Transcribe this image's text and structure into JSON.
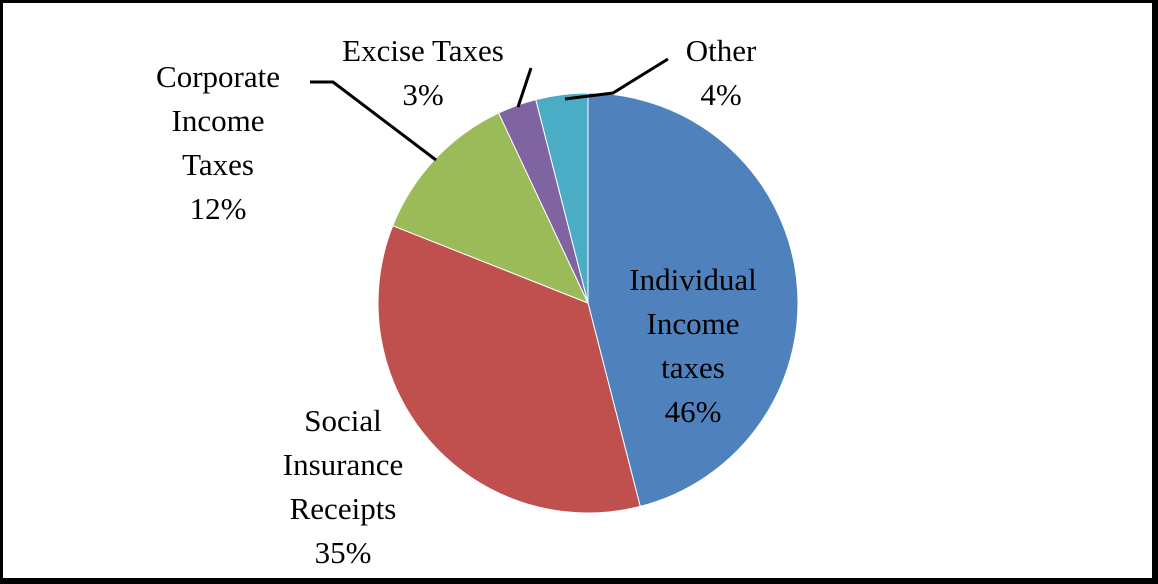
{
  "chart_data": {
    "type": "pie",
    "title": "",
    "start_angle_deg": 0,
    "direction": "clockwise",
    "slices": [
      {
        "id": "individual",
        "label_lines": [
          "Individual",
          "Income",
          "taxes"
        ],
        "value_label": "46%",
        "value": 46,
        "color": "#4F81BD"
      },
      {
        "id": "social",
        "label_lines": [
          "Social",
          "Insurance",
          "Receipts"
        ],
        "value_label": "35%",
        "value": 35,
        "color": "#C0504D"
      },
      {
        "id": "corporate",
        "label_lines": [
          "Corporate",
          "Income",
          "Taxes"
        ],
        "value_label": "12%",
        "value": 12,
        "color": "#9BBB59"
      },
      {
        "id": "excise",
        "label_lines": [
          "Excise Taxes"
        ],
        "value_label": "3%",
        "value": 3,
        "color": "#8064A2"
      },
      {
        "id": "other",
        "label_lines": [
          "Other"
        ],
        "value_label": "4%",
        "value": 4,
        "color": "#4BACC6"
      }
    ],
    "legend": "none",
    "leader_lines": [
      "corporate",
      "excise",
      "other"
    ]
  }
}
